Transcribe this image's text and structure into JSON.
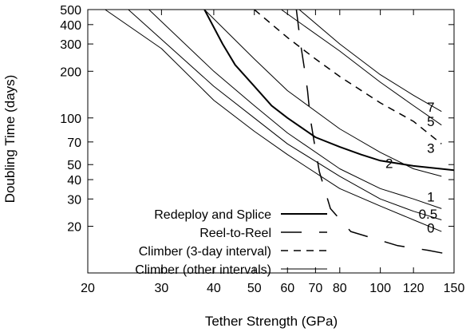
{
  "chart_data": {
    "type": "line",
    "xlabel": "Tether Strength (GPa)",
    "ylabel": "Doubling Time (days)",
    "x_scale": "log",
    "y_scale": "log",
    "xlim": [
      20,
      150
    ],
    "ylim": [
      10,
      500
    ],
    "grid": false,
    "legend_position": "bottom-left",
    "x_ticks": [
      20,
      30,
      40,
      50,
      60,
      70,
      80,
      100,
      120,
      150
    ],
    "y_ticks": [
      20,
      30,
      40,
      50,
      70,
      100,
      200,
      300,
      400,
      500
    ],
    "legend": [
      {
        "label": "Redeploy and Splice",
        "style": "thick"
      },
      {
        "label": "Reel-to-Reel",
        "style": "long-dash"
      },
      {
        "label": "Climber (3-day interval)",
        "style": "dashed"
      },
      {
        "label": "Climber (other intervals)",
        "style": "thin"
      }
    ],
    "series": [
      {
        "name": "Redeploy and Splice",
        "style": "thick",
        "points": [
          [
            38,
            500
          ],
          [
            42,
            300
          ],
          [
            45,
            220
          ],
          [
            50,
            160
          ],
          [
            55,
            120
          ],
          [
            60,
            100
          ],
          [
            70,
            75
          ],
          [
            80,
            65
          ],
          [
            90,
            58
          ],
          [
            100,
            53
          ],
          [
            120,
            49
          ],
          [
            150,
            46
          ]
        ]
      },
      {
        "name": "Reel-to-Reel",
        "style": "long-dash",
        "points": [
          [
            63,
            500
          ],
          [
            64.5,
            300
          ],
          [
            66,
            200
          ],
          [
            67,
            150
          ],
          [
            68,
            100
          ],
          [
            69.5,
            70
          ],
          [
            71.5,
            45
          ],
          [
            76,
            26
          ],
          [
            85,
            18.5
          ],
          [
            110,
            15
          ],
          [
            130,
            14
          ],
          [
            150,
            13
          ]
        ]
      },
      {
        "name": "Climber (3-day interval)",
        "style": "dashed",
        "curve_label": "3",
        "points": [
          [
            50,
            500
          ],
          [
            60,
            330
          ],
          [
            70,
            240
          ],
          [
            80,
            185
          ],
          [
            100,
            125
          ],
          [
            120,
            95
          ],
          [
            140,
            68
          ]
        ]
      },
      {
        "name": "Climber (other intervals)",
        "style": "thin",
        "curve_label": "7",
        "points": [
          [
            64,
            500
          ],
          [
            80,
            300
          ],
          [
            100,
            190
          ],
          [
            120,
            140
          ],
          [
            140,
            110
          ]
        ]
      },
      {
        "name": "Climber (other intervals)",
        "style": "thin",
        "curve_label": "5",
        "points": [
          [
            58,
            500
          ],
          [
            80,
            270
          ],
          [
            100,
            170
          ],
          [
            120,
            120
          ],
          [
            140,
            90
          ]
        ]
      },
      {
        "name": "Climber (other intervals)",
        "style": "thin",
        "curve_label": "2",
        "points": [
          [
            38,
            500
          ],
          [
            50,
            240
          ],
          [
            60,
            150
          ],
          [
            80,
            85
          ],
          [
            100,
            60
          ],
          [
            120,
            47
          ],
          [
            140,
            42
          ]
        ]
      },
      {
        "name": "Climber (other intervals)",
        "style": "thin",
        "curve_label": "1",
        "points": [
          [
            28,
            500
          ],
          [
            40,
            200
          ],
          [
            50,
            120
          ],
          [
            60,
            80
          ],
          [
            80,
            47
          ],
          [
            100,
            35
          ],
          [
            120,
            30
          ],
          [
            140,
            26
          ]
        ]
      },
      {
        "name": "Climber (other intervals)",
        "style": "thin",
        "curve_label": "0.5",
        "points": [
          [
            25,
            500
          ],
          [
            40,
            160
          ],
          [
            50,
            100
          ],
          [
            60,
            68
          ],
          [
            80,
            42
          ],
          [
            100,
            30
          ],
          [
            120,
            25
          ],
          [
            140,
            22
          ]
        ]
      },
      {
        "name": "Climber (other intervals)",
        "style": "thin",
        "curve_label": "0",
        "points": [
          [
            22,
            500
          ],
          [
            30,
            280
          ],
          [
            40,
            130
          ],
          [
            50,
            82
          ],
          [
            60,
            58
          ],
          [
            80,
            35
          ],
          [
            100,
            27
          ],
          [
            120,
            22
          ],
          [
            140,
            18.5
          ]
        ]
      }
    ],
    "curve_labels": [
      {
        "text": "7",
        "x": 132,
        "y": 118
      },
      {
        "text": "5",
        "x": 132,
        "y": 95
      },
      {
        "text": "3",
        "x": 132,
        "y": 64
      },
      {
        "text": "2",
        "x": 105,
        "y": 51
      },
      {
        "text": "1",
        "x": 132,
        "y": 31
      },
      {
        "text": "0.5",
        "x": 130,
        "y": 24
      },
      {
        "text": "0",
        "x": 132,
        "y": 19.5
      }
    ]
  }
}
